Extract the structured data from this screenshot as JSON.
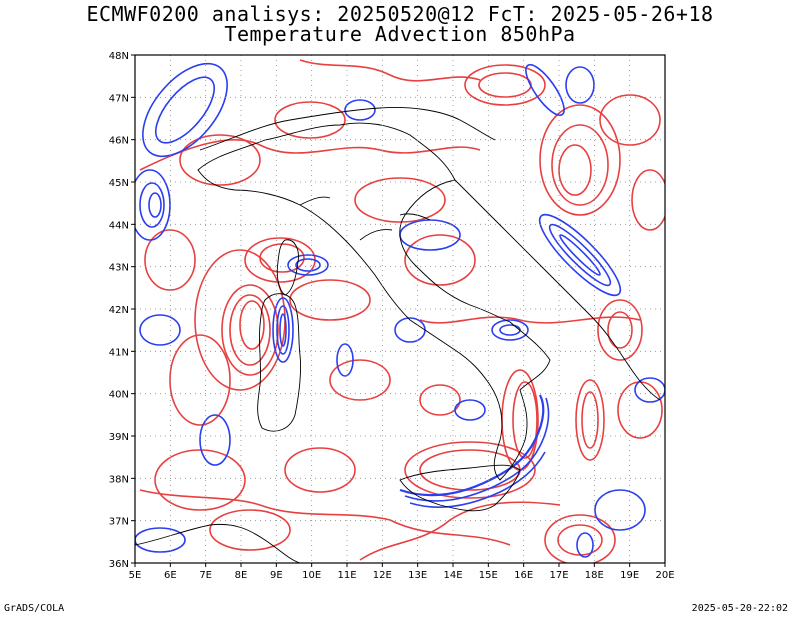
{
  "titles": {
    "line1": "ECMWF0200 analisys: 20250520@12 FcT: 2025-05-26+18",
    "line2": "Temperature Advection 850hPa"
  },
  "footer": {
    "left": "GrADS/COLA",
    "right": "2025-05-20-22:02"
  },
  "map": {
    "lon_range": [
      5,
      20
    ],
    "lat_range": [
      36,
      48
    ],
    "lon_ticks": [
      "5E",
      "6E",
      "7E",
      "8E",
      "9E",
      "10E",
      "11E",
      "12E",
      "13E",
      "14E",
      "15E",
      "16E",
      "17E",
      "18E",
      "19E",
      "20E"
    ],
    "lat_ticks": [
      "36N",
      "37N",
      "38N",
      "39N",
      "40N",
      "41N",
      "42N",
      "43N",
      "44N",
      "45N",
      "46N",
      "47N",
      "48N"
    ],
    "contour_colors": {
      "warm_advection": "#e84040",
      "cold_advection": "#2a3ff0"
    },
    "coastline_color": "#000000",
    "grid": "dotted"
  }
}
